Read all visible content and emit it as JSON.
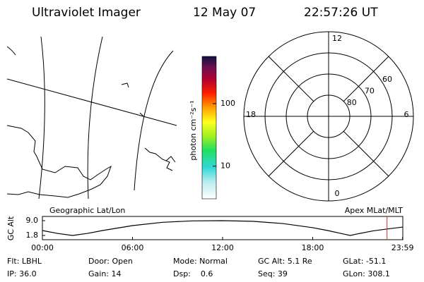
{
  "header": {
    "title": "Ultraviolet Imager",
    "date": "12 May 07",
    "time": "22:57:26 UT"
  },
  "colorbar": {
    "label": "photon cm⁻²s⁻¹",
    "log": true,
    "lim": [
      3,
      570
    ],
    "ticks": [
      10,
      100
    ]
  },
  "polar": {
    "hour_labels": [
      12,
      18,
      6,
      0
    ],
    "lat_labels": [
      80,
      70,
      60
    ],
    "rlim": [
      90,
      50
    ]
  },
  "chart_data": {
    "type": "line",
    "left_label": "Geographic Lat/Lon",
    "right_label": "Apex MLat/MLT",
    "ylabel": "GC Alt",
    "x": [
      0,
      1,
      2,
      3,
      4,
      6,
      8,
      10,
      12,
      14,
      16,
      18,
      19,
      20,
      20.5,
      21,
      22,
      23,
      24
    ],
    "series": [
      {
        "color": "#000000",
        "values": [
          4.2,
          2.8,
          1.8,
          2.8,
          4.2,
          6.6,
          8.2,
          8.9,
          9.0,
          8.7,
          7.6,
          5.6,
          4.2,
          2.6,
          1.8,
          2.6,
          4.0,
          5.0,
          5.9
        ]
      }
    ],
    "marker": {
      "x": 22.95,
      "color": "#d03020"
    },
    "xlim": [
      0,
      24
    ],
    "ylim": [
      1.8,
      9.0
    ],
    "xticks": [
      {
        "value": 0,
        "label": "00:00"
      },
      {
        "value": 6,
        "label": "06:00"
      },
      {
        "value": 12,
        "label": "12:00"
      },
      {
        "value": 18,
        "label": "18:00"
      },
      {
        "value": 23.983,
        "label": "23:59"
      }
    ],
    "yticks": [
      {
        "value": 9.0,
        "label": "9.0"
      },
      {
        "value": 1.8,
        "label": "1.8"
      }
    ]
  },
  "info": [
    [
      "Flt: LBHL",
      "Door: Open",
      "Mode: Normal",
      "GC Alt: 5.1 Re",
      "GLat: -51.1"
    ],
    [
      "IP: 36.0",
      "Gain: 14",
      "Dsp:    0.6",
      "Seq: 39",
      "GLon: 308.1"
    ]
  ]
}
